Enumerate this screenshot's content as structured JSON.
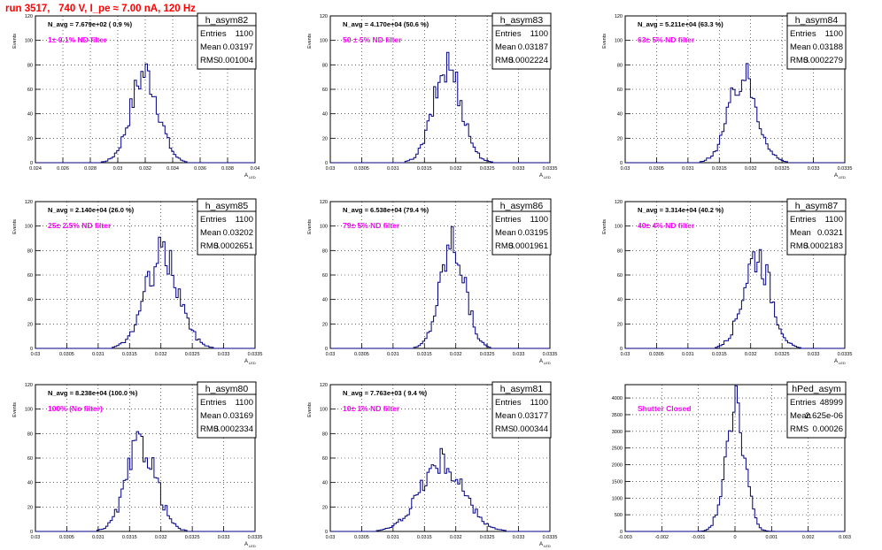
{
  "title": "run 3517,   740 V, I_pe ≈ 7.00 nA, 120 Hz",
  "stats_labels": {
    "entries": "Entries",
    "mean": "Mean",
    "rms": "RMS"
  },
  "colors": {
    "hist": "#000080",
    "filter": "#ff00ff",
    "title": "#ff0000",
    "grid": "#000000"
  },
  "panels": [
    {
      "name": "h_asym82",
      "navg": "N_avg = 7.679e+02 ( 0.9 %)",
      "filter": "1± 0.1% ND filter",
      "entries": "1100",
      "mean": "0.03197",
      "rms": "0.001004",
      "ylabel": "Events",
      "xlabel": "A",
      "xticks": [
        "0.024",
        "0.026",
        "0.028",
        "0.03",
        "0.032",
        "0.034",
        "0.036",
        "0.038",
        "0.04"
      ],
      "yticks": [
        "0",
        "20",
        "40",
        "60",
        "80",
        "100",
        "120"
      ]
    },
    {
      "name": "h_asym83",
      "navg": "N_avg = 4.170e+04 (50.6 %)",
      "filter": "50 ± 5% ND filter",
      "entries": "1100",
      "mean": "0.03187",
      "rms": "0.0002224",
      "ylabel": "Events",
      "xlabel": "A",
      "xticks": [
        "0.03",
        "0.0305",
        "0.031",
        "0.0315",
        "0.032",
        "0.0325",
        "0.033",
        "0.0335"
      ],
      "yticks": [
        "0",
        "20",
        "40",
        "60",
        "80",
        "100",
        "120"
      ]
    },
    {
      "name": "h_asym84",
      "navg": "N_avg = 5.211e+04 (63.3 %)",
      "filter": "63± 5% ND filter",
      "entries": "1100",
      "mean": "0.03188",
      "rms": "0.0002279",
      "ylabel": "Events",
      "xlabel": "A",
      "xticks": [
        "0.03",
        "0.0305",
        "0.031",
        "0.0315",
        "0.032",
        "0.0325",
        "0.033",
        "0.0335"
      ],
      "yticks": [
        "0",
        "20",
        "40",
        "60",
        "80",
        "100",
        "120"
      ]
    },
    {
      "name": "h_asym85",
      "navg": "N_avg = 2.140e+04 (26.0 %)",
      "filter": "25± 2.5% ND filter",
      "entries": "1100",
      "mean": "0.03202",
      "rms": "0.0002651",
      "ylabel": "Events",
      "xlabel": "A",
      "xticks": [
        "0.03",
        "0.0305",
        "0.031",
        "0.0315",
        "0.032",
        "0.0325",
        "0.033",
        "0.0335"
      ],
      "yticks": [
        "0",
        "20",
        "40",
        "60",
        "80",
        "100",
        "120"
      ]
    },
    {
      "name": "h_asym86",
      "navg": "N_avg = 6.538e+04 (79.4 %)",
      "filter": "79± 5% ND filter",
      "entries": "1100",
      "mean": "0.03195",
      "rms": "0.0001961",
      "ylabel": "Events",
      "xlabel": "A",
      "xticks": [
        "0.03",
        "0.0305",
        "0.031",
        "0.0315",
        "0.032",
        "0.0325",
        "0.033",
        "0.0335"
      ],
      "yticks": [
        "0",
        "20",
        "40",
        "60",
        "80",
        "100",
        "120"
      ]
    },
    {
      "name": "h_asym87",
      "navg": "N_avg = 3.314e+04 (40.2 %)",
      "filter": "40± 4% ND filter",
      "entries": "1100",
      "mean": "0.0321",
      "rms": "0.0002183",
      "ylabel": "Events",
      "xlabel": "A",
      "xticks": [
        "0.03",
        "0.0305",
        "0.031",
        "0.0315",
        "0.032",
        "0.0325",
        "0.033",
        "0.0335"
      ],
      "yticks": [
        "0",
        "20",
        "40",
        "60",
        "80",
        "100",
        "120"
      ]
    },
    {
      "name": "h_asym80",
      "navg": "N_avg = 8.238e+04 (100.0 %)",
      "filter": "100% (No filter)",
      "entries": "1100",
      "mean": "0.03169",
      "rms": "0.0002334",
      "ylabel": "Events",
      "xlabel": "A",
      "xticks": [
        "0.03",
        "0.0305",
        "0.031",
        "0.0315",
        "0.032",
        "0.0325",
        "0.033",
        "0.0335"
      ],
      "yticks": [
        "0",
        "20",
        "40",
        "60",
        "80",
        "100",
        "120"
      ]
    },
    {
      "name": "h_asym81",
      "navg": "N_avg = 7.763e+03 ( 9.4 %)",
      "filter": "10± 1% ND filter",
      "entries": "1100",
      "mean": "0.03177",
      "rms": "0.000344",
      "ylabel": "Events",
      "xlabel": "A",
      "xticks": [
        "0.03",
        "0.0305",
        "0.031",
        "0.0315",
        "0.032",
        "0.0325",
        "0.033",
        "0.0335"
      ],
      "yticks": [
        "0",
        "20",
        "40",
        "60",
        "80",
        "100",
        "120"
      ]
    },
    {
      "name": "hPed_asym",
      "navg": "",
      "filter": "Shutter Closed",
      "entries": "48999",
      "mean": "2.625e-06",
      "rms": "0.00026",
      "ylabel": "",
      "xlabel": "",
      "xticks": [
        "-0.003",
        "-0.002",
        "-0.001",
        "0",
        "0.001",
        "0.002",
        "0.003"
      ],
      "yticks": [
        "0",
        "500",
        "1000",
        "1500",
        "2000",
        "2500",
        "3000",
        "3500",
        "4000"
      ]
    }
  ],
  "chart_data": [
    {
      "type": "bar",
      "name": "h_asym82",
      "xlim": [
        0.024,
        0.04
      ],
      "ylim": [
        0,
        120
      ],
      "grid": true,
      "peak": 73,
      "mean": 0.03197,
      "rms": 0.001004
    },
    {
      "type": "bar",
      "name": "h_asym83",
      "xlim": [
        0.03,
        0.0335
      ],
      "ylim": [
        0,
        120
      ],
      "grid": true,
      "peak": 79,
      "mean": 0.03187,
      "rms": 0.0002224
    },
    {
      "type": "bar",
      "name": "h_asym84",
      "xlim": [
        0.03,
        0.0335
      ],
      "ylim": [
        0,
        120
      ],
      "grid": true,
      "peak": 70,
      "mean": 0.03188,
      "rms": 0.0002279
    },
    {
      "type": "bar",
      "name": "h_asym85",
      "xlim": [
        0.03,
        0.0335
      ],
      "ylim": [
        0,
        120
      ],
      "grid": true,
      "peak": 76,
      "mean": 0.03202,
      "rms": 0.0002651
    },
    {
      "type": "bar",
      "name": "h_asym86",
      "xlim": [
        0.03,
        0.0335
      ],
      "ylim": [
        0,
        120
      ],
      "grid": true,
      "peak": 87,
      "mean": 0.03195,
      "rms": 0.0001961
    },
    {
      "type": "bar",
      "name": "h_asym87",
      "xlim": [
        0.03,
        0.0335
      ],
      "ylim": [
        0,
        120
      ],
      "grid": true,
      "peak": 77,
      "mean": 0.0321,
      "rms": 0.0002183
    },
    {
      "type": "bar",
      "name": "h_asym80",
      "xlim": [
        0.03,
        0.0335
      ],
      "ylim": [
        0,
        120
      ],
      "grid": true,
      "peak": 72,
      "mean": 0.03169,
      "rms": 0.0002334
    },
    {
      "type": "bar",
      "name": "h_asym81",
      "xlim": [
        0.03,
        0.0335
      ],
      "ylim": [
        0,
        120
      ],
      "grid": true,
      "peak": 56,
      "mean": 0.03177,
      "rms": 0.000344
    },
    {
      "type": "bar",
      "name": "hPed_asym",
      "xlim": [
        -0.003,
        0.003
      ],
      "ylim": [
        0,
        4400
      ],
      "grid": true,
      "peak": 4000,
      "mean": 2.625e-06,
      "rms": 0.00026
    }
  ]
}
